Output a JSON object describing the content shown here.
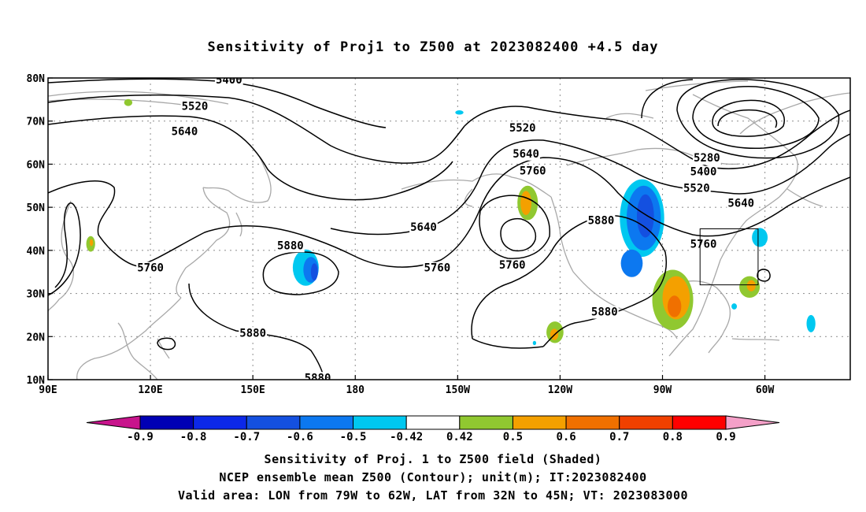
{
  "title": "Sensitivity of Proj1 to Z500 at 2023082400 +4.5 day",
  "captions": [
    "Sensitivity of Proj. 1 to Z500 field (Shaded)",
    "NCEP ensemble mean Z500 (Contour); unit(m); IT:2023082400",
    "Valid area: LON from 79W to 62W, LAT from 32N to 45N; VT: 2023083000"
  ],
  "map": {
    "lat_labels": [
      "80N",
      "70N",
      "60N",
      "50N",
      "40N",
      "30N",
      "20N",
      "10N"
    ],
    "lat_values": [
      80,
      70,
      60,
      50,
      40,
      30,
      20,
      10
    ],
    "lon_labels": [
      "90E",
      "120E",
      "150E",
      "180",
      "150W",
      "120W",
      "90W",
      "60W"
    ],
    "lon_values": [
      90,
      120,
      150,
      180,
      210,
      240,
      270,
      300
    ],
    "lon_range": [
      90,
      325
    ],
    "lat_range": [
      10,
      80
    ],
    "valid_box": {
      "lon": [
        281,
        298
      ],
      "lat": [
        32,
        45
      ]
    },
    "contour_labels": [
      {
        "text": "5400",
        "lon": 143,
        "lat": 79.6
      },
      {
        "text": "5520",
        "lon": 133,
        "lat": 73.5
      },
      {
        "text": "5640",
        "lon": 130,
        "lat": 67.7
      },
      {
        "text": "5520",
        "lon": 229,
        "lat": 68.5
      },
      {
        "text": "5640",
        "lon": 230,
        "lat": 62.5
      },
      {
        "text": "5760",
        "lon": 232,
        "lat": 58.5
      },
      {
        "text": "5280",
        "lon": 283,
        "lat": 61.5
      },
      {
        "text": "5400",
        "lon": 282,
        "lat": 58.3
      },
      {
        "text": "5520",
        "lon": 280,
        "lat": 54.5
      },
      {
        "text": "5640",
        "lon": 293,
        "lat": 51.0
      },
      {
        "text": "5880",
        "lon": 252,
        "lat": 47.0
      },
      {
        "text": "5760",
        "lon": 282,
        "lat": 41.5
      },
      {
        "text": "5640",
        "lon": 200,
        "lat": 45.5
      },
      {
        "text": "5760",
        "lon": 204,
        "lat": 36.0
      },
      {
        "text": "5760",
        "lon": 226,
        "lat": 36.7
      },
      {
        "text": "5760",
        "lon": 120,
        "lat": 36.0
      },
      {
        "text": "5880",
        "lon": 161,
        "lat": 41.2
      },
      {
        "text": "5880",
        "lon": 150,
        "lat": 20.9
      },
      {
        "text": "5880",
        "lon": 253,
        "lat": 25.8
      },
      {
        "text": "5880",
        "lon": 169,
        "lat": 10.5
      }
    ],
    "shaded_blobs": [
      {
        "lon": 102.5,
        "lat": 41.5,
        "rx": 1.3,
        "ry": 1.8,
        "color": "#90c830"
      },
      {
        "lon": 102.7,
        "lat": 41.8,
        "rx": 0.5,
        "ry": 0.8,
        "color": "#f4a000"
      },
      {
        "lon": 113.5,
        "lat": 74.3,
        "rx": 1.2,
        "ry": 0.8,
        "color": "#90c830"
      },
      {
        "lon": 210.5,
        "lat": 72.0,
        "rx": 1.2,
        "ry": 0.5,
        "color": "#00c8f0"
      },
      {
        "lon": 165.5,
        "lat": 36.0,
        "rx": 3.8,
        "ry": 4.2,
        "color": "#00c8f0"
      },
      {
        "lon": 167.0,
        "lat": 35.5,
        "rx": 2.2,
        "ry": 3.0,
        "color": "#0c78f0"
      },
      {
        "lon": 168.0,
        "lat": 35.0,
        "rx": 1.0,
        "ry": 2.0,
        "color": "#1450e0"
      },
      {
        "lon": 230.5,
        "lat": 51.0,
        "rx": 3.0,
        "ry": 4.0,
        "color": "#90c830"
      },
      {
        "lon": 230.0,
        "lat": 51.0,
        "rx": 1.6,
        "ry": 2.8,
        "color": "#f4a000"
      },
      {
        "lon": 264.0,
        "lat": 47.5,
        "rx": 6.5,
        "ry": 9.0,
        "color": "#00c8f0"
      },
      {
        "lon": 264.5,
        "lat": 47.5,
        "rx": 5.0,
        "ry": 7.5,
        "color": "#0c78f0"
      },
      {
        "lon": 265.0,
        "lat": 48.0,
        "rx": 2.5,
        "ry": 5.0,
        "color": "#1450e0"
      },
      {
        "lon": 261.0,
        "lat": 37.0,
        "rx": 3.2,
        "ry": 3.2,
        "color": "#0c78f0"
      },
      {
        "lon": 273.0,
        "lat": 28.5,
        "rx": 6.0,
        "ry": 7.0,
        "color": "#90c830"
      },
      {
        "lon": 274.0,
        "lat": 29.0,
        "rx": 4.0,
        "ry": 5.0,
        "color": "#f4a000"
      },
      {
        "lon": 273.5,
        "lat": 27.0,
        "rx": 2.0,
        "ry": 2.5,
        "color": "#f07000"
      },
      {
        "lon": 238.5,
        "lat": 21.0,
        "rx": 2.5,
        "ry": 2.5,
        "color": "#90c830"
      },
      {
        "lon": 238.3,
        "lat": 20.5,
        "rx": 1.2,
        "ry": 1.3,
        "color": "#f4a000"
      },
      {
        "lon": 295.5,
        "lat": 31.5,
        "rx": 3.0,
        "ry": 2.5,
        "color": "#90c830"
      },
      {
        "lon": 296.0,
        "lat": 31.8,
        "rx": 1.3,
        "ry": 1.3,
        "color": "#f4a000"
      },
      {
        "lon": 298.5,
        "lat": 43.0,
        "rx": 2.3,
        "ry": 2.2,
        "color": "#00c8f0"
      },
      {
        "lon": 313.5,
        "lat": 23.0,
        "rx": 1.3,
        "ry": 2.0,
        "color": "#00c8f0"
      },
      {
        "lon": 291.0,
        "lat": 27.0,
        "rx": 0.8,
        "ry": 0.7,
        "color": "#00c8f0"
      },
      {
        "lon": 255.0,
        "lat": 26.5,
        "rx": 1.0,
        "ry": 0.6,
        "color": "#00c8f0"
      },
      {
        "lon": 232.5,
        "lat": 18.5,
        "rx": 0.5,
        "ry": 0.5,
        "color": "#00c8f0"
      }
    ]
  },
  "colorbar": {
    "labels": [
      "-0.9",
      "-0.8",
      "-0.7",
      "-0.6",
      "-0.5",
      "-0.42",
      "0.42",
      "0.5",
      "0.6",
      "0.7",
      "0.8",
      "0.9"
    ],
    "colors": [
      "#0000b4",
      "#0c28e8",
      "#1450e0",
      "#0c78f0",
      "#00c8f0",
      "#ffffff",
      "#90c830",
      "#f4a000",
      "#f07000",
      "#f04000",
      "#ff0000"
    ],
    "low_color": "#c8148c",
    "high_color": "#f4a0c8"
  }
}
